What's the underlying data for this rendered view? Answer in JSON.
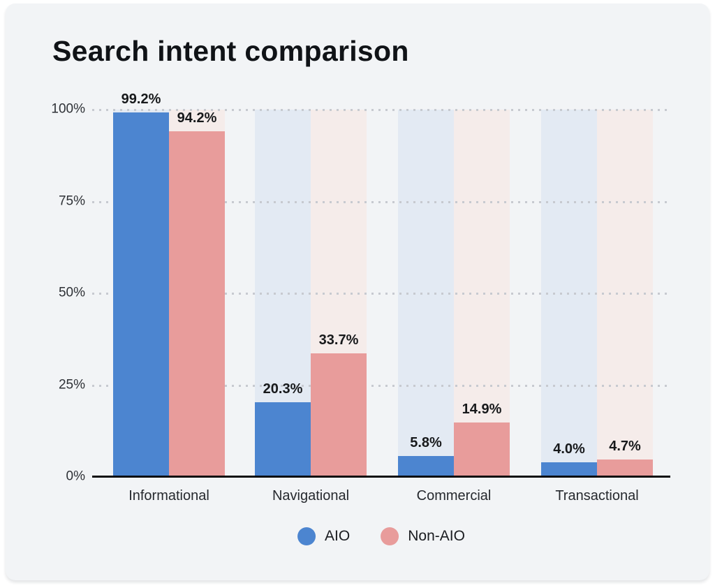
{
  "card": {
    "background_color": "#F2F4F6"
  },
  "chart_data": {
    "type": "bar",
    "title": "Search intent comparison",
    "categories": [
      "Informational",
      "Navigational",
      "Commercial",
      "Transactional"
    ],
    "series": [
      {
        "name": "AIO",
        "color": "#4C85D0",
        "band_color": "#E3EAF3",
        "values": [
          99.2,
          20.3,
          5.8,
          4.0
        ],
        "value_labels": [
          "99.2%",
          "20.3%",
          "5.8%",
          "4.0%"
        ]
      },
      {
        "name": "Non-AIO",
        "color": "#E89C9B",
        "band_color": "#F5ECEA",
        "values": [
          94.2,
          33.7,
          14.9,
          4.7
        ],
        "value_labels": [
          "94.2%",
          "33.7%",
          "14.9%",
          "4.7%"
        ]
      }
    ],
    "xlabel": "",
    "ylabel": "",
    "ylim": [
      0,
      100
    ],
    "yticks": [
      {
        "label": "0%",
        "pct": 0
      },
      {
        "label": "25%",
        "pct": 25
      },
      {
        "label": "50%",
        "pct": 50
      },
      {
        "label": "75%",
        "pct": 75
      },
      {
        "label": "100%",
        "pct": 100
      }
    ],
    "grid": "horizontal-dotted",
    "legend_position": "bottom-center",
    "gridline_color": "#C7CAD0",
    "axis_color": "#0C0D0F"
  }
}
